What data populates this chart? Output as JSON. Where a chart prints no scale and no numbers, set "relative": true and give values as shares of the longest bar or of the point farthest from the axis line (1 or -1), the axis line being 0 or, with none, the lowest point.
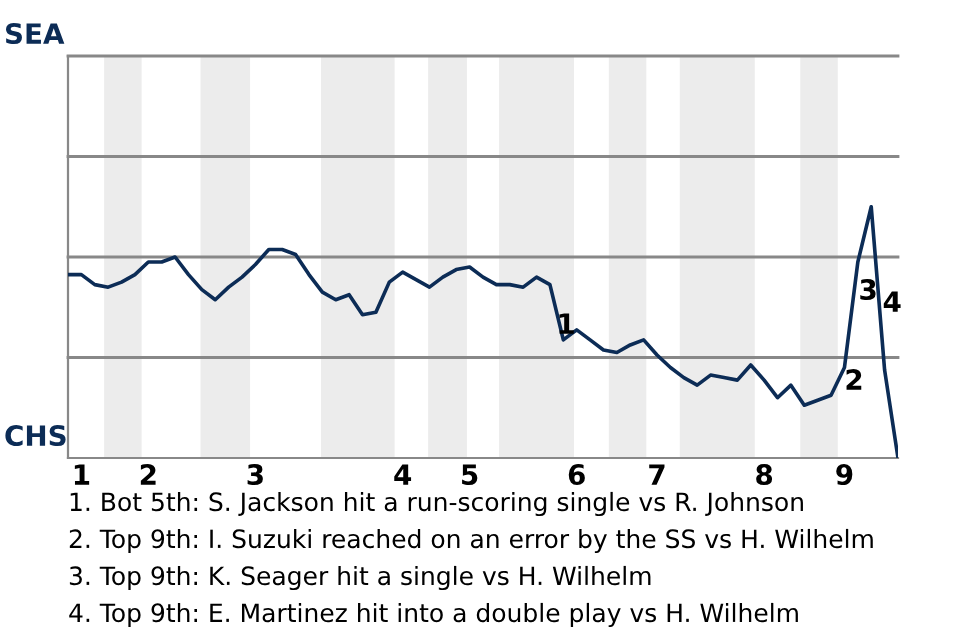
{
  "chart_data": {
    "type": "line",
    "relative": true,
    "categories": [
      null,
      "1",
      null,
      null,
      null,
      null,
      "2",
      null,
      null,
      null,
      null,
      null,
      null,
      null,
      "3",
      null,
      null,
      null,
      null,
      null,
      null,
      null,
      null,
      null,
      null,
      "4",
      null,
      null,
      null,
      null,
      "5",
      null,
      null,
      null,
      null,
      null,
      null,
      null,
      "6",
      null,
      null,
      null,
      null,
      null,
      "7",
      null,
      null,
      null,
      null,
      null,
      null,
      null,
      "8",
      null,
      null,
      null,
      null,
      null,
      "9",
      null,
      null,
      null,
      null
    ],
    "series": [
      {
        "color": "#0c2c56",
        "values": [
          0.73,
          0.73,
          0.69,
          0.68,
          0.7,
          0.73,
          0.78,
          0.78,
          0.8,
          0.73,
          0.67,
          0.63,
          0.68,
          0.72,
          0.77,
          0.83,
          0.83,
          0.81,
          0.73,
          0.66,
          0.63,
          0.65,
          0.57,
          0.58,
          0.7,
          0.74,
          0.71,
          0.68,
          0.72,
          0.75,
          0.76,
          0.72,
          0.69,
          0.69,
          0.68,
          0.72,
          0.69,
          0.47,
          0.51,
          0.47,
          0.43,
          0.42,
          0.45,
          0.47,
          0.41,
          0.36,
          0.32,
          0.29,
          0.33,
          0.32,
          0.31,
          0.37,
          0.31,
          0.24,
          0.29,
          0.21,
          0.23,
          0.25,
          0.36,
          0.78,
          1,
          0.35,
          0
        ]
      }
    ],
    "ref_lines": [
      {
        "axis": "y",
        "value": 0.4,
        "color": "#888888"
      },
      {
        "axis": "y",
        "value": 0.8,
        "color": "#888888"
      },
      {
        "axis": "y",
        "value": 1.2,
        "color": "#888888"
      },
      {
        "axis": "y",
        "value": 1.6,
        "color": "#888888"
      }
    ],
    "annotations": [
      "1",
      "2",
      "3",
      "4",
      "SEA",
      "CHS",
      "1. Bot 5th: S. Jackson hit a run-scoring single vs R. Johnson",
      "2. Top 9th: I. Suzuki reached on an error by the SS vs H. Wilhelm",
      "3. Top 9th: K. Seager hit a single vs H. Wilhelm",
      "4. Top 9th: E. Martinez hit into a double play vs H. Wilhelm"
    ]
  }
}
